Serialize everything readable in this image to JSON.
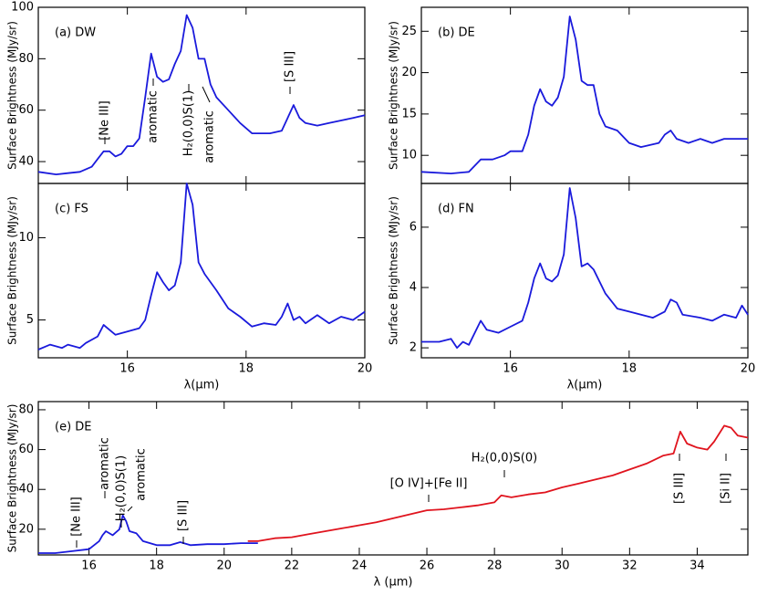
{
  "chart_data": [
    {
      "type": "line",
      "panel_label": "(a) DW",
      "y_label": "Surface Brightness (MJy/sr)",
      "show_xtick_labels": false,
      "xlim": [
        14.5,
        20
      ],
      "ylim": [
        31.5,
        100
      ],
      "xticks": [
        16,
        18,
        20
      ],
      "yticks": [
        40,
        60,
        80,
        100
      ],
      "annotations": [
        "[Ne III]",
        "aromatic",
        "H₂(0,0)S(1)",
        "aromatic",
        "[S III]"
      ],
      "series": [
        {
          "color": "#1a1adc",
          "x": [
            14.5,
            14.8,
            15.0,
            15.2,
            15.4,
            15.5,
            15.6,
            15.7,
            15.8,
            15.9,
            16.0,
            16.1,
            16.2,
            16.3,
            16.4,
            16.5,
            16.6,
            16.7,
            16.8,
            16.9,
            17.0,
            17.1,
            17.2,
            17.3,
            17.4,
            17.5,
            17.7,
            17.9,
            18.1,
            18.4,
            18.6,
            18.7,
            18.8,
            18.9,
            19.0,
            19.2,
            19.4,
            19.6,
            19.8,
            20.0
          ],
          "values": [
            36,
            35,
            35.5,
            36,
            38,
            41,
            44,
            44,
            42,
            43,
            46,
            46,
            49,
            65,
            82,
            73,
            71,
            72,
            78,
            83,
            97,
            92,
            80,
            80,
            70,
            65,
            60,
            55,
            51,
            51,
            52,
            57,
            62,
            57,
            55,
            54,
            55,
            56,
            57,
            58
          ]
        }
      ]
    },
    {
      "type": "line",
      "panel_label": "(b) DE",
      "y_label": "Surface Brightness (MJy/sr)",
      "show_xtick_labels": false,
      "xlim": [
        14.5,
        20
      ],
      "ylim": [
        6.6,
        27.9
      ],
      "xticks": [
        16,
        18,
        20
      ],
      "yticks": [
        10,
        15,
        20,
        25
      ],
      "series": [
        {
          "color": "#1a1adc",
          "x": [
            14.5,
            15.0,
            15.3,
            15.5,
            15.7,
            15.9,
            16.0,
            16.2,
            16.3,
            16.4,
            16.5,
            16.6,
            16.7,
            16.8,
            16.9,
            17.0,
            17.1,
            17.2,
            17.3,
            17.4,
            17.5,
            17.6,
            17.8,
            18.0,
            18.2,
            18.5,
            18.6,
            18.7,
            18.8,
            19.0,
            19.2,
            19.4,
            19.6,
            20.0
          ],
          "values": [
            8,
            7.8,
            8,
            9.5,
            9.5,
            10,
            10.5,
            10.5,
            12.5,
            16,
            18,
            16.5,
            16,
            17,
            19.5,
            26.8,
            24,
            19,
            18.5,
            18.5,
            15,
            13.5,
            13,
            11.5,
            11,
            11.5,
            12.5,
            13,
            12,
            11.5,
            12,
            11.5,
            12,
            12
          ]
        }
      ]
    },
    {
      "type": "line",
      "panel_label": "(c) FS",
      "y_label": "Surface Brightness (MJy/sr)",
      "x_label": "λ(μm)",
      "show_xtick_labels": true,
      "xlim": [
        14.5,
        20
      ],
      "ylim": [
        2.7,
        13.3
      ],
      "xticks": [
        16,
        18,
        20
      ],
      "yticks": [
        5,
        10
      ],
      "series": [
        {
          "color": "#1a1adc",
          "x": [
            14.5,
            14.7,
            14.9,
            15.0,
            15.2,
            15.3,
            15.5,
            15.6,
            15.7,
            15.8,
            16.0,
            16.2,
            16.3,
            16.4,
            16.5,
            16.6,
            16.7,
            16.8,
            16.9,
            17.0,
            17.1,
            17.2,
            17.3,
            17.5,
            17.7,
            17.9,
            18.1,
            18.3,
            18.5,
            18.6,
            18.7,
            18.8,
            18.9,
            19.0,
            19.2,
            19.4,
            19.6,
            19.8,
            20.0
          ],
          "values": [
            3.2,
            3.5,
            3.3,
            3.5,
            3.3,
            3.6,
            4,
            4.7,
            4.4,
            4.1,
            4.3,
            4.5,
            5,
            6.5,
            7.9,
            7.3,
            6.8,
            7.1,
            8.5,
            13.3,
            12,
            8.5,
            7.8,
            6.8,
            5.7,
            5.2,
            4.6,
            4.8,
            4.7,
            5.2,
            6,
            5,
            5.2,
            4.8,
            5.3,
            4.8,
            5.2,
            5,
            5.5
          ]
        }
      ]
    },
    {
      "type": "line",
      "panel_label": "(d) FN",
      "y_label": "Surface Brightness (MJy/sr)",
      "x_label": "λ(μm)",
      "show_xtick_labels": true,
      "xlim": [
        14.5,
        20
      ],
      "ylim": [
        1.67,
        7.45
      ],
      "xticks": [
        16,
        18,
        20
      ],
      "yticks": [
        2,
        4,
        6
      ],
      "series": [
        {
          "color": "#1a1adc",
          "x": [
            14.5,
            14.8,
            15.0,
            15.1,
            15.2,
            15.3,
            15.5,
            15.6,
            15.8,
            16.0,
            16.2,
            16.3,
            16.4,
            16.5,
            16.6,
            16.7,
            16.8,
            16.9,
            17.0,
            17.1,
            17.2,
            17.3,
            17.4,
            17.6,
            17.8,
            18.0,
            18.2,
            18.4,
            18.6,
            18.7,
            18.8,
            18.9,
            19.2,
            19.4,
            19.6,
            19.8,
            19.9,
            20.0
          ],
          "values": [
            2.2,
            2.2,
            2.3,
            2.0,
            2.2,
            2.1,
            2.9,
            2.6,
            2.5,
            2.7,
            2.9,
            3.5,
            4.3,
            4.8,
            4.3,
            4.2,
            4.4,
            5.1,
            7.3,
            6.3,
            4.7,
            4.8,
            4.6,
            3.8,
            3.3,
            3.2,
            3.1,
            3,
            3.2,
            3.6,
            3.5,
            3.1,
            3,
            2.9,
            3.1,
            3,
            3.4,
            3.1
          ]
        }
      ]
    },
    {
      "type": "line",
      "panel_label": "(e) DE",
      "y_label": "Surface Brightness (MJy/sr)",
      "x_label": "λ (μm)",
      "show_xtick_labels": true,
      "xlim": [
        14.5,
        35.5
      ],
      "ylim": [
        7.1,
        84.1
      ],
      "xticks": [
        16,
        18,
        20,
        22,
        24,
        26,
        28,
        30,
        32,
        34
      ],
      "yticks": [
        20,
        40,
        60,
        80
      ],
      "annotations": [
        "[Ne III]",
        "aromatic",
        "H₂(0,0)S(1)",
        "aromatic",
        "[S III]",
        "[O IV]+[Fe II]",
        "H₂(0,0)S(0)",
        "[S III]",
        "[Si II]"
      ],
      "series": [
        {
          "color": "#1a1adc",
          "x": [
            14.5,
            15.0,
            15.5,
            16.0,
            16.3,
            16.4,
            16.5,
            16.7,
            16.9,
            17.0,
            17.1,
            17.2,
            17.4,
            17.6,
            18.0,
            18.4,
            18.7,
            19.0,
            19.5,
            20.0,
            20.5,
            21.0
          ],
          "values": [
            8,
            8,
            9,
            10,
            14,
            17,
            19,
            17,
            20,
            27,
            24,
            19,
            18,
            14,
            12,
            12,
            13.5,
            12,
            12.5,
            12.5,
            13,
            13
          ]
        },
        {
          "color": "#e0141e",
          "x": [
            20.7,
            21.0,
            21.5,
            22.0,
            22.5,
            23.0,
            23.5,
            24.0,
            24.5,
            25.0,
            25.5,
            26.0,
            26.5,
            27.0,
            27.5,
            28.0,
            28.2,
            28.5,
            29.0,
            29.5,
            30.0,
            30.5,
            31.0,
            31.5,
            32.0,
            32.5,
            33.0,
            33.3,
            33.5,
            33.7,
            34.0,
            34.3,
            34.5,
            34.8,
            35.0,
            35.2,
            35.5
          ],
          "values": [
            14,
            14,
            15.5,
            16,
            17.5,
            19,
            20.5,
            22,
            23.5,
            25.5,
            27.5,
            29.5,
            30,
            31,
            32,
            33.5,
            37,
            36,
            37.5,
            38.5,
            41,
            43,
            45,
            47,
            50,
            53,
            57,
            58,
            69,
            63,
            61,
            60,
            64,
            72,
            71,
            67,
            66
          ]
        }
      ]
    }
  ]
}
